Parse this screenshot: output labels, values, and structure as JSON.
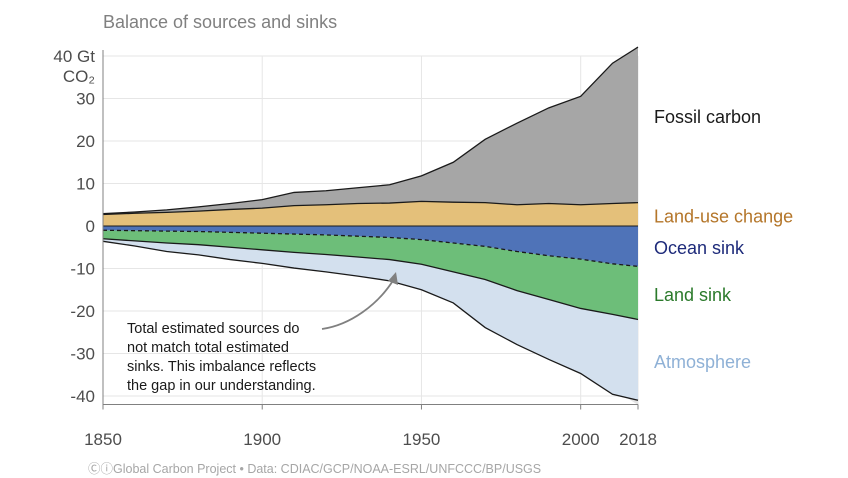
{
  "chart_data": {
    "type": "area",
    "title": "Balance of sources and sinks",
    "unit_label": [
      "40 Gt",
      "CO₂"
    ],
    "x_ticks": [
      1850,
      1900,
      1950,
      2000,
      2018
    ],
    "y_ticks": [
      30,
      20,
      10,
      0,
      -10,
      -20,
      -30,
      -40
    ],
    "xlim": [
      1850,
      2018
    ],
    "ylim": [
      -42,
      42
    ],
    "grid": true,
    "x": [
      1850,
      1860,
      1870,
      1880,
      1890,
      1900,
      1910,
      1920,
      1930,
      1940,
      1950,
      1960,
      1970,
      1980,
      1990,
      2000,
      2010,
      2018
    ],
    "series": [
      {
        "name": "Land-use change",
        "color": "#e4c07a",
        "text_color": "#b4762a",
        "values": [
          2.7,
          3.0,
          3.2,
          3.5,
          3.9,
          4.2,
          4.8,
          5.0,
          5.3,
          5.4,
          5.8,
          5.6,
          5.5,
          5.0,
          5.3,
          5.0,
          5.3,
          5.5
        ]
      },
      {
        "name": "Fossil carbon",
        "color": "#a6a6a6",
        "text_color": "#1a1a1a",
        "values": [
          0.2,
          0.3,
          0.6,
          1.0,
          1.4,
          2.0,
          3.1,
          3.3,
          3.7,
          4.3,
          6.0,
          9.4,
          14.9,
          19.2,
          22.5,
          25.5,
          33.0,
          36.6
        ]
      },
      {
        "name": "Ocean sink",
        "color": "#4f73b8",
        "text_color": "#1d2a7a",
        "values": [
          -1.0,
          -1.1,
          -1.2,
          -1.3,
          -1.5,
          -1.7,
          -1.9,
          -2.1,
          -2.4,
          -2.7,
          -3.2,
          -4.0,
          -4.8,
          -6.0,
          -7.0,
          -7.8,
          -8.9,
          -9.5
        ]
      },
      {
        "name": "Land sink",
        "color": "#6dbe79",
        "text_color": "#2b7a2b",
        "values": [
          -2.0,
          -2.4,
          -2.8,
          -3.1,
          -3.5,
          -3.9,
          -4.3,
          -4.6,
          -4.9,
          -5.2,
          -5.8,
          -6.8,
          -7.8,
          -9.2,
          -10.3,
          -11.6,
          -11.9,
          -12.5
        ]
      },
      {
        "name": "Atmosphere",
        "color": "#d3e0ee",
        "text_color": "#8fb1d6",
        "values": [
          -0.6,
          -1.2,
          -2.0,
          -2.4,
          -2.9,
          -3.2,
          -3.7,
          -4.1,
          -4.5,
          -5.0,
          -6.0,
          -7.3,
          -11.3,
          -12.7,
          -14.1,
          -15.3,
          -18.8,
          -19.0
        ]
      }
    ],
    "annotation": [
      "Total estimated sources do",
      "not match total estimated",
      "sinks. This imbalance reflects",
      "the gap in our understanding."
    ]
  },
  "footer": {
    "cc_icon": "cc-by-icon",
    "text": "Global Carbon Project  •  Data: CDIAC/GCP/NOAA-ESRL/UNFCCC/BP/USGS"
  }
}
